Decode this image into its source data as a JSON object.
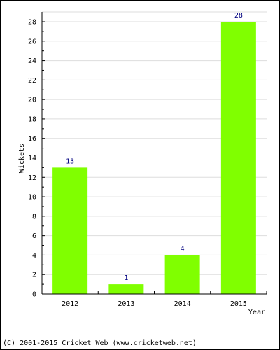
{
  "chart_data": {
    "type": "bar",
    "categories": [
      "2012",
      "2013",
      "2014",
      "2015"
    ],
    "values": [
      13,
      1,
      4,
      28
    ],
    "title": "",
    "xlabel": "Year",
    "ylabel": "Wickets",
    "ylim": [
      0,
      28
    ],
    "yticks": [
      0,
      2,
      4,
      6,
      8,
      10,
      12,
      14,
      16,
      18,
      20,
      22,
      24,
      26,
      28
    ],
    "grid": true,
    "bar_color": "#80ff00",
    "label_color": "#000080"
  },
  "footer": {
    "copyright": "(C) 2001-2015 Cricket Web (www.cricketweb.net)"
  }
}
